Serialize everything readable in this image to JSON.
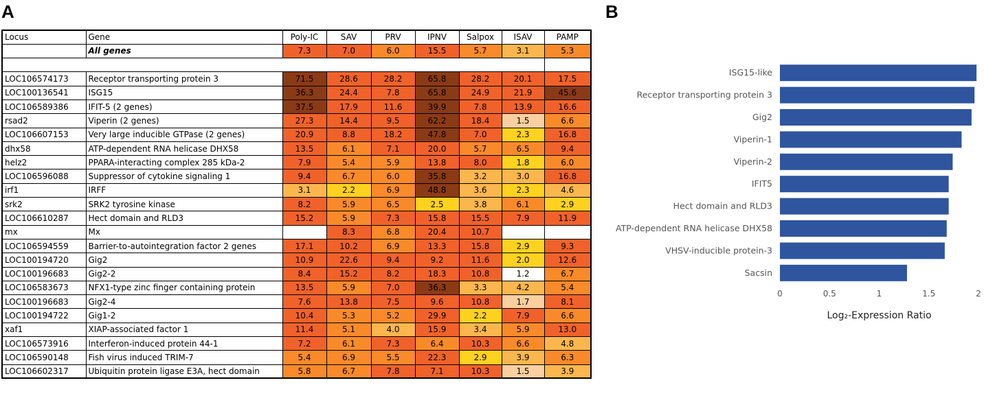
{
  "panel_a_label": "A",
  "panel_b_label": "B",
  "table": {
    "headers": [
      "Locus",
      "Gene",
      "Poly-IC",
      "SAV",
      "PRV",
      "IPNV",
      "Salpox",
      "ISAV",
      "PAMP"
    ],
    "all_genes": {
      "locus": "",
      "gene": "All genes",
      "values": [
        "7.3",
        "7.0",
        "6.0",
        "15.5",
        "5.7",
        "3.1",
        "5.3"
      ]
    },
    "rows": [
      {
        "locus": "LOC106574173",
        "gene": "Receptor transporting protein 3",
        "values": [
          "71.5",
          "28.6",
          "28.2",
          "65.8",
          "28.2",
          "20.1",
          "17.5"
        ]
      },
      {
        "locus": "LOC100136541",
        "gene": "ISG15",
        "values": [
          "36.3",
          "24.4",
          "7.8",
          "65.8",
          "24.9",
          "21.9",
          "45.6"
        ]
      },
      {
        "locus": "LOC106589386",
        "gene": "IFIT-5 (2 genes)",
        "values": [
          "37.5",
          "17.9",
          "11.6",
          "39.9",
          "7.8",
          "13.9",
          "16.6"
        ]
      },
      {
        "locus": "rsad2",
        "gene": "Viperin (2 genes)",
        "values": [
          "27.3",
          "14.4",
          "9.5",
          "62.2",
          "18.4",
          "1.5",
          "6.6"
        ]
      },
      {
        "locus": "LOC106607153",
        "gene": "Very large inducible GTPase (2 genes)",
        "values": [
          "20.9",
          "8.8",
          "18.2",
          "47.8",
          "7.0",
          "2.3",
          "16.8"
        ]
      },
      {
        "locus": "dhx58",
        "gene": "ATP-dependent RNA helicase DHX58",
        "values": [
          "13.5",
          "6.1",
          "7.1",
          "20.0",
          "5.7",
          "6.5",
          "9.4"
        ]
      },
      {
        "locus": "helz2",
        "gene": "PPARA-interacting complex 285 kDa-2",
        "values": [
          "7.9",
          "5.4",
          "5.9",
          "13.8",
          "8.0",
          "1.8",
          "6.0"
        ]
      },
      {
        "locus": "LOC106596088",
        "gene": "Suppressor of cytokine signaling 1",
        "values": [
          "9.4",
          "6.7",
          "6.0",
          "35.8",
          "3.2",
          "3.0",
          "16.8"
        ]
      },
      {
        "locus": "irf1",
        "gene": "IRFF",
        "values": [
          "3.1",
          "2.2",
          "6.9",
          "48.8",
          "3.6",
          "2.3",
          "4.6"
        ]
      },
      {
        "locus": "srk2",
        "gene": "SRK2 tyrosine kinase",
        "values": [
          "8.2",
          "5.9",
          "6.5",
          "2.5",
          "3.8",
          "6.1",
          "2.9"
        ]
      },
      {
        "locus": "LOC106610287",
        "gene": "Hect domain and RLD3",
        "values": [
          "15.2",
          "5.9",
          "7.3",
          "15.8",
          "15.5",
          "7.9",
          "11.9"
        ]
      },
      {
        "locus": "mx",
        "gene": "Mx",
        "values": [
          "",
          "8.3",
          "6.8",
          "20.4",
          "10.7",
          "",
          ""
        ]
      },
      {
        "locus": "LOC106594559",
        "gene": "Barrier-to-autointegration factor 2 genes",
        "values": [
          "17.1",
          "10.2",
          "6.9",
          "13.3",
          "15.8",
          "2.9",
          "9.3"
        ]
      },
      {
        "locus": "LOC100194720",
        "gene": "Gig2",
        "values": [
          "10.9",
          "22.6",
          "9.4",
          "9.2",
          "11.6",
          "2.0",
          "12.6"
        ]
      },
      {
        "locus": "LOC100196683",
        "gene": "Gig2-2",
        "values": [
          "8.4",
          "15.2",
          "8.2",
          "18.3",
          "10.8",
          "1.2",
          "6.7"
        ]
      },
      {
        "locus": "LOC106583673",
        "gene": "NFX1-type zinc finger containing protein",
        "values": [
          "13.5",
          "5.9",
          "7.0",
          "36.3",
          "3.3",
          "4.2",
          "5.4"
        ]
      },
      {
        "locus": "LOC100196683",
        "gene": "Gig2-4",
        "values": [
          "7.6",
          "13.8",
          "7.5",
          "9.6",
          "10.8",
          "1.7",
          "8.1"
        ]
      },
      {
        "locus": "LOC100194722",
        "gene": "Gig1-2",
        "values": [
          "10.4",
          "5.3",
          "5.2",
          "29.9",
          "2.2",
          "7.9",
          "6.6"
        ]
      },
      {
        "locus": "xaf1",
        "gene": "XIAP-associated factor 1",
        "values": [
          "11.4",
          "5.1",
          "4.0",
          "15.9",
          "3.4",
          "5.9",
          "13.0"
        ]
      },
      {
        "locus": "LOC106573916",
        "gene": "Interferon-induced protein 44-1",
        "values": [
          "7.2",
          "6.1",
          "7.3",
          "6.4",
          "10.3",
          "6.6",
          "4.8"
        ]
      },
      {
        "locus": "LOC106590148",
        "gene": "Fish virus induced TRIM-7",
        "values": [
          "5.4",
          "6.9",
          "5.5",
          "22.3",
          "2.9",
          "3.9",
          "6.3"
        ]
      },
      {
        "locus": "LOC106602317",
        "gene": "Ubiquitin protein ligase E3A, hect domain",
        "values": [
          "5.8",
          "6.7",
          "7.8",
          "7.1",
          "10.3",
          "1.5",
          "3.9"
        ]
      }
    ]
  },
  "colors": {
    "dark_brown": "#8b3a16",
    "orange_red": "#f0622a",
    "orange": "#f98a2a",
    "light_orange": "#fbb74d",
    "yellow": "#ffd21f",
    "peach": "#fbcf9f",
    "bar_blue": "#2f559f"
  },
  "chart_data": {
    "type": "bar",
    "orientation": "horizontal",
    "categories": [
      "ISG15-like",
      "Receptor transporting protein 3",
      "Gig2",
      "Viperin-1",
      "Viperin-2",
      "IFIT5",
      "Hect domain and RLD3",
      "ATP-dependent RNA helicase DHX58",
      "VHSV-inducible protein-3",
      "Sacsin"
    ],
    "values": [
      1.98,
      1.96,
      1.93,
      1.83,
      1.74,
      1.7,
      1.7,
      1.68,
      1.66,
      1.28
    ],
    "xlabel": "Log₂-Expression Ratio",
    "xlim": [
      0,
      2
    ],
    "xticks": [
      "0",
      "0.5",
      "1",
      "1.5",
      "2"
    ],
    "grid": false
  }
}
